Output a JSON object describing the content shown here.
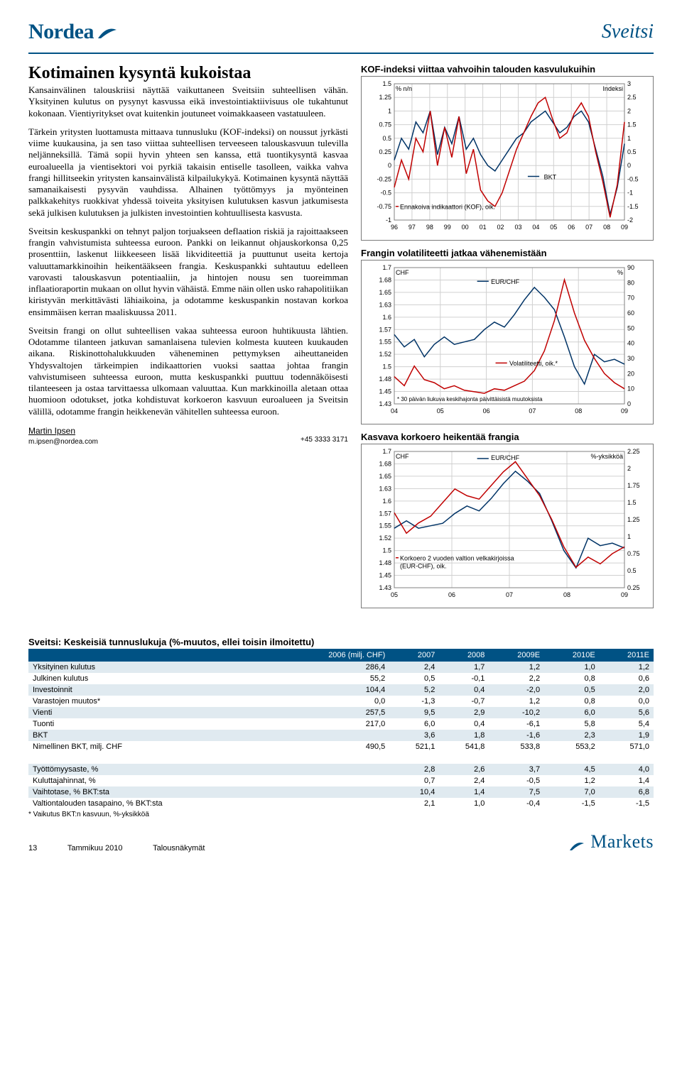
{
  "brand": {
    "name": "Nordea",
    "color": "#005284"
  },
  "country_title": "Sveitsi",
  "main_title": "Kotimainen kysyntä kukoistaa",
  "paragraphs": [
    "Kansainvälinen talouskriisi näyttää vaikuttaneen Sveitsiin suhteellisen vähän. Yksityinen kulutus on pysynyt kasvussa eikä investointiaktiivisuus ole tukahtunut kokonaan. Vientiyritykset ovat kuitenkin joutuneet voimakkaaseen vastatuuleen.",
    "Tärkein yritysten luottamusta mittaava tunnusluku (KOF-indeksi) on noussut jyrkästi viime kuukausina, ja sen taso viittaa suhteellisen terveeseen talouskasvuun tulevilla neljänneksillä. Tämä sopii hyvin yhteen sen kanssa, että tuontikysyntä kasvaa euroalueella ja vientisektori voi pyrkiä takaisin entiselle tasolleen, vaikka vahva frangi hillitseekin yritysten kansainvälistä kilpailukykyä. Kotimainen kysyntä näyttää samanaikaisesti pysyvän vauhdissa. Alhainen työttömyys ja myönteinen palkkakehitys ruokkivat yhdessä toiveita yksityisen kulutuksen kasvun jatkumisesta sekä julkisen kulutuksen ja julkisten investointien kohtuullisesta kasvusta.",
    "Sveitsin keskuspankki on tehnyt paljon torjuakseen deflaation riskiä ja rajoittaakseen frangin vahvistumista suhteessa euroon. Pankki on leikannut ohjauskorkonsa 0,25 prosenttiin, laskenut liikkeeseen lisää likviditeettiä ja puuttunut useita kertoja valuuttamarkkinoihin heikentääkseen frangia. Keskuspankki suhtautuu edelleen varovasti talouskasvun potentiaaliin, ja hintojen nousu sen tuoreimman inflaatioraportin mukaan on ollut hyvin vähäistä. Emme näin ollen usko rahapolitiikan kiristyvän merkittävästi lähiaikoina, ja odotamme keskuspankin nostavan korkoa ensimmäisen kerran maaliskuussa 2011.",
    "Sveitsin frangi on ollut suhteellisen vakaa suhteessa euroon huhtikuusta lähtien. Odotamme tilanteen jatkuvan samanlaisena tulevien kolmesta kuuteen kuukauden aikana. Riskinottohalukkuuden väheneminen pettymyksen aiheuttaneiden Yhdysvaltojen tärkeimpien indikaattorien vuoksi saattaa johtaa frangin vahvistumiseen suhteessa euroon, mutta keskuspankki puuttuu todennäköisesti tilanteeseen ja ostaa tarvittaessa ulkomaan valuuttaa. Kun markkinoilla aletaan ottaa huomioon odotukset, jotka kohdistuvat korkoeron kasvuun euroalueen ja Sveitsin välillä, odotamme frangin heikkenevän vähitellen suhteessa euroon."
  ],
  "author": {
    "name": "Martin Ipsen",
    "email": "m.ipsen@nordea.com",
    "phone": "+45 3333 3171"
  },
  "chart1": {
    "title": "KOF-indeksi viittaa vahvoihin talouden kasvulukuihin",
    "type": "line",
    "left_label": "% n/n",
    "right_label": "Indeksi",
    "left_ylim": [
      -1.0,
      1.5
    ],
    "left_ticks": [
      -1.0,
      -0.75,
      -0.5,
      -0.25,
      0.0,
      0.25,
      0.5,
      0.75,
      1.0,
      1.25,
      1.5
    ],
    "right_ylim": [
      -2.0,
      3.0
    ],
    "right_ticks": [
      -2.0,
      -1.5,
      -1.0,
      -0.5,
      0.0,
      0.5,
      1.0,
      1.5,
      2.0,
      2.5,
      3.0
    ],
    "x_ticks": [
      "96",
      "97",
      "98",
      "99",
      "00",
      "01",
      "02",
      "03",
      "04",
      "05",
      "06",
      "07",
      "08",
      "09"
    ],
    "series": [
      {
        "name": "BKT",
        "color": "#003366",
        "axis": "left",
        "y": [
          0.1,
          0.5,
          0.3,
          0.8,
          0.6,
          1.0,
          0.2,
          0.7,
          0.4,
          0.9,
          0.3,
          0.5,
          0.2,
          0.0,
          -0.1,
          0.1,
          0.3,
          0.5,
          0.6,
          0.8,
          0.9,
          1.0,
          0.8,
          0.6,
          0.7,
          0.9,
          1.0,
          0.8,
          0.3,
          -0.2,
          -0.9,
          -0.4,
          0.4
        ]
      },
      {
        "name": "Ennakoiva indikaattori (KOF), oik.",
        "color": "#c00000",
        "axis": "right",
        "y": [
          -0.8,
          0.2,
          -0.5,
          1.0,
          0.5,
          2.0,
          0.0,
          1.4,
          0.3,
          1.8,
          -0.3,
          0.6,
          -0.9,
          -1.3,
          -1.5,
          -1.0,
          -0.2,
          0.6,
          1.2,
          1.8,
          2.3,
          2.5,
          1.7,
          1.0,
          1.2,
          1.9,
          2.3,
          1.8,
          0.5,
          -0.6,
          -1.9,
          -0.7,
          1.6
        ]
      }
    ],
    "legend_bkt": "BKT",
    "legend_kof": "Ennakoiva indikaattori (KOF), oik.",
    "grid_color": "#d0d0d0",
    "background": "#ffffff",
    "label_fontsize": 9
  },
  "chart2": {
    "title": "Frangin volatiliteetti jatkaa vähenemistään",
    "type": "line",
    "left_label": "CHF",
    "right_label": "%",
    "left_ylim": [
      1.425,
      1.7
    ],
    "left_ticks": [
      1.425,
      1.45,
      1.475,
      1.5,
      1.525,
      1.55,
      1.575,
      1.6,
      1.625,
      1.65,
      1.675,
      1.7
    ],
    "right_ylim": [
      0,
      90
    ],
    "right_ticks": [
      0,
      10,
      20,
      30,
      40,
      50,
      60,
      70,
      80,
      90
    ],
    "x_ticks": [
      "04",
      "05",
      "06",
      "07",
      "08",
      "09"
    ],
    "series": [
      {
        "name": "EUR/CHF",
        "color": "#003366",
        "axis": "left",
        "y": [
          1.565,
          1.54,
          1.555,
          1.52,
          1.545,
          1.56,
          1.545,
          1.55,
          1.555,
          1.575,
          1.59,
          1.58,
          1.605,
          1.635,
          1.66,
          1.64,
          1.615,
          1.56,
          1.5,
          1.465,
          1.525,
          1.51,
          1.515,
          1.505
        ]
      },
      {
        "name": "Volatiliteetti, oik.*",
        "color": "#c00000",
        "axis": "right",
        "y": [
          18,
          12,
          25,
          16,
          14,
          10,
          12,
          9,
          8,
          7,
          10,
          9,
          12,
          15,
          22,
          35,
          55,
          82,
          60,
          42,
          30,
          20,
          14,
          10
        ]
      }
    ],
    "legend_eurchf": "EUR/CHF",
    "legend_vol": "Volatiliteetti, oik.*",
    "footnote": "* 30 päivän liukuva keskihajonta päivittäisistä muutoksista",
    "grid_color": "#d0d0d0",
    "background": "#ffffff",
    "label_fontsize": 9
  },
  "chart3": {
    "title": "Kasvava korkoero heikentää frangia",
    "type": "line",
    "left_label": "CHF",
    "right_label": "%-yksikköä",
    "left_ylim": [
      1.425,
      1.7
    ],
    "left_ticks": [
      1.425,
      1.45,
      1.475,
      1.5,
      1.525,
      1.55,
      1.575,
      1.6,
      1.625,
      1.65,
      1.675,
      1.7
    ],
    "right_ylim": [
      0.25,
      2.25
    ],
    "right_ticks": [
      0.25,
      0.5,
      0.75,
      1.0,
      1.25,
      1.5,
      1.75,
      2.0,
      2.25
    ],
    "x_ticks": [
      "05",
      "06",
      "07",
      "08",
      "09"
    ],
    "series": [
      {
        "name": "EUR/CHF",
        "color": "#003366",
        "axis": "left",
        "y": [
          1.545,
          1.56,
          1.545,
          1.55,
          1.555,
          1.575,
          1.59,
          1.58,
          1.605,
          1.635,
          1.66,
          1.64,
          1.615,
          1.56,
          1.5,
          1.465,
          1.525,
          1.51,
          1.515,
          1.505
        ]
      },
      {
        "name": "Korkoero 2 vuoden valtion velkakirjoissa (EUR-CHF), oik.",
        "color": "#c00000",
        "axis": "right",
        "y": [
          1.35,
          1.05,
          1.2,
          1.3,
          1.5,
          1.7,
          1.6,
          1.55,
          1.75,
          1.95,
          2.1,
          1.85,
          1.6,
          1.25,
          0.85,
          0.55,
          0.7,
          0.6,
          0.75,
          0.85
        ]
      }
    ],
    "legend_eurchf": "EUR/CHF",
    "legend_spread": "Korkoero 2 vuoden valtion velkakirjoissa (EUR-CHF), oik.",
    "grid_color": "#d0d0d0",
    "background": "#ffffff",
    "label_fontsize": 9
  },
  "table": {
    "title": "Sveitsi: Keskeisiä tunnuslukuja (%-muutos, ellei toisin ilmoitettu)",
    "columns": [
      "",
      "2006 (milj. CHF)",
      "2007",
      "2008",
      "2009E",
      "2010E",
      "2011E"
    ],
    "rows": [
      [
        "Yksityinen kulutus",
        "286,4",
        "2,4",
        "1,7",
        "1,2",
        "1,0",
        "1,2"
      ],
      [
        "Julkinen kulutus",
        "55,2",
        "0,5",
        "-0,1",
        "2,2",
        "0,8",
        "0,6"
      ],
      [
        "Investoinnit",
        "104,4",
        "5,2",
        "0,4",
        "-2,0",
        "0,5",
        "2,0"
      ],
      [
        "Varastojen muutos*",
        "0,0",
        "-1,3",
        "-0,7",
        "1,2",
        "0,8",
        "0,0"
      ],
      [
        "Vienti",
        "257,5",
        "9,5",
        "2,9",
        "-10,2",
        "6,0",
        "5,6"
      ],
      [
        "Tuonti",
        "217,0",
        "6,0",
        "0,4",
        "-6,1",
        "5,8",
        "5,4"
      ],
      [
        "BKT",
        "",
        "3,6",
        "1,8",
        "-1,6",
        "2,3",
        "1,9"
      ],
      [
        "Nimellinen BKT, milj. CHF",
        "490,5",
        "521,1",
        "541,8",
        "533,8",
        "553,2",
        "571,0"
      ]
    ],
    "rows2": [
      [
        "Työttömyysaste, %",
        "",
        "2,8",
        "2,6",
        "3,7",
        "4,5",
        "4,0"
      ],
      [
        "Kuluttajahinnat, %",
        "",
        "0,7",
        "2,4",
        "-0,5",
        "1,2",
        "1,4"
      ],
      [
        "Vaihtotase, % BKT:sta",
        "",
        "10,4",
        "1,4",
        "7,5",
        "7,0",
        "6,8"
      ],
      [
        "Valtiontalouden tasapaino, % BKT:sta",
        "",
        "2,1",
        "1,0",
        "-0,4",
        "-1,5",
        "-1,5"
      ]
    ],
    "footnote": "* Vaikutus BKT:n kasvuun, %-yksikköä"
  },
  "footer": {
    "page": "13",
    "month": "Tammikuu 2010",
    "section": "Talousnäkymät",
    "brand_right": "Markets"
  }
}
